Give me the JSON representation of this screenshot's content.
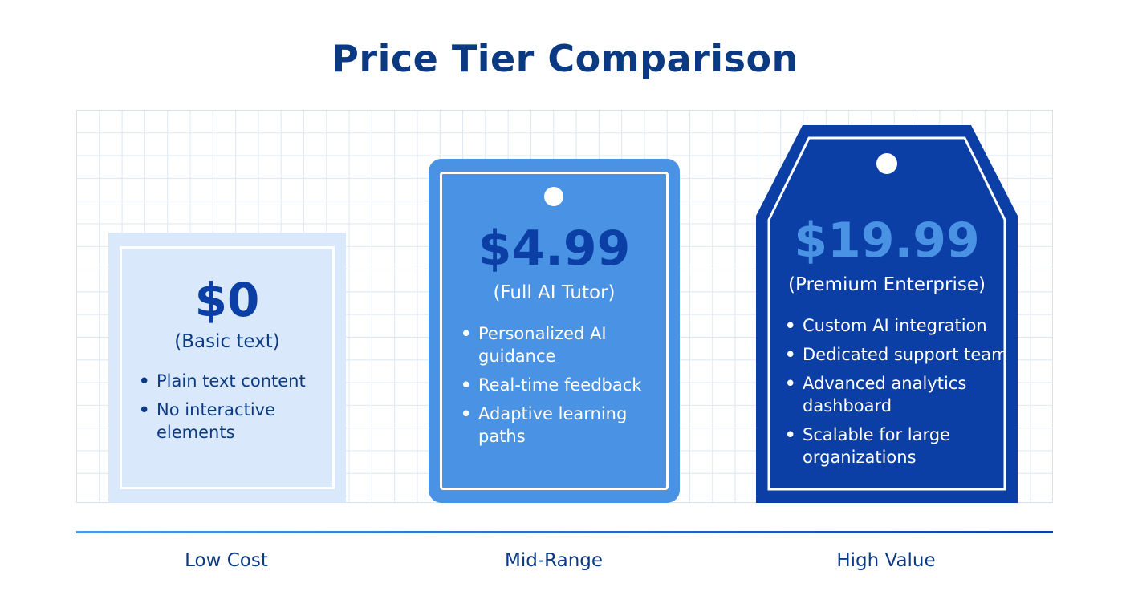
{
  "title": "Price Tier Comparison",
  "tiers": [
    {
      "price": "$0",
      "subtitle": "(Basic text)",
      "features": [
        "Plain text content",
        "No interactive elements"
      ],
      "axis_label": "Low Cost",
      "color": "#d9e8fb"
    },
    {
      "price": "$4.99",
      "subtitle": "(Full AI Tutor)",
      "features": [
        "Personalized AI guidance",
        "Real-time feedback",
        "Adaptive learning paths"
      ],
      "axis_label": "Mid-Range",
      "color": "#4a93e4"
    },
    {
      "price": "$19.99",
      "subtitle": "(Premium Enterprise)",
      "features": [
        "Custom AI integration",
        "Dedicated support team",
        "Advanced analytics dashboard",
        "Scalable for large organizations"
      ],
      "axis_label": "High Value",
      "color": "#0b3fa6"
    }
  ],
  "bullet": "•",
  "colors": {
    "title": "#0b3a82",
    "accent_light": "#4a93e4",
    "accent_dark": "#0b3fa6"
  }
}
